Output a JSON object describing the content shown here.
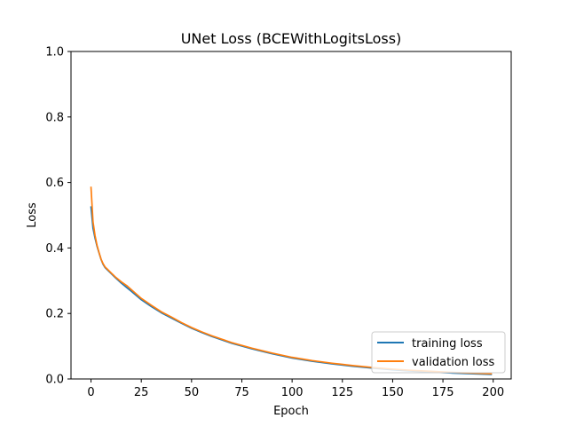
{
  "chart_data": {
    "type": "line",
    "title": "UNet Loss (BCEWithLogitsLoss)",
    "xlabel": "Epoch",
    "ylabel": "Loss",
    "xlim": [
      -9.95,
      208.95
    ],
    "ylim": [
      0,
      1.0
    ],
    "xticks": [
      0,
      25,
      50,
      75,
      100,
      125,
      150,
      175,
      200
    ],
    "yticks": [
      0.0,
      0.2,
      0.4,
      0.6,
      0.8,
      1.0
    ],
    "xtick_labels": [
      "0",
      "25",
      "50",
      "75",
      "100",
      "125",
      "150",
      "175",
      "200"
    ],
    "ytick_labels": [
      "0.0",
      "0.2",
      "0.4",
      "0.6",
      "0.8",
      "1.0"
    ],
    "grid": false,
    "legend_position": "lower-right",
    "series": [
      {
        "name": "training loss",
        "color": "#1f77b4",
        "x": [
          0,
          1,
          2,
          3,
          4,
          5,
          6,
          7,
          8,
          10,
          12,
          15,
          18,
          20,
          25,
          30,
          35,
          40,
          45,
          50,
          55,
          60,
          70,
          80,
          90,
          100,
          110,
          120,
          130,
          140,
          150,
          160,
          170,
          180,
          190,
          199
        ],
        "y": [
          0.525,
          0.46,
          0.43,
          0.405,
          0.385,
          0.365,
          0.35,
          0.34,
          0.334,
          0.322,
          0.31,
          0.293,
          0.278,
          0.268,
          0.242,
          0.221,
          0.202,
          0.186,
          0.17,
          0.155,
          0.142,
          0.13,
          0.109,
          0.092,
          0.077,
          0.064,
          0.054,
          0.046,
          0.039,
          0.033,
          0.028,
          0.024,
          0.021,
          0.018,
          0.016,
          0.014
        ]
      },
      {
        "name": "validation loss",
        "color": "#ff7f0e",
        "x": [
          0,
          1,
          2,
          3,
          4,
          5,
          6,
          7,
          8,
          10,
          12,
          15,
          18,
          20,
          25,
          30,
          35,
          40,
          45,
          50,
          55,
          60,
          70,
          80,
          90,
          100,
          110,
          120,
          130,
          140,
          150,
          160,
          170,
          180,
          190,
          199
        ],
        "y": [
          0.585,
          0.48,
          0.438,
          0.408,
          0.386,
          0.366,
          0.352,
          0.342,
          0.336,
          0.324,
          0.312,
          0.297,
          0.284,
          0.273,
          0.246,
          0.225,
          0.205,
          0.189,
          0.172,
          0.157,
          0.144,
          0.132,
          0.111,
          0.094,
          0.079,
          0.066,
          0.056,
          0.048,
          0.041,
          0.035,
          0.03,
          0.026,
          0.023,
          0.02,
          0.018,
          0.016
        ]
      }
    ]
  }
}
